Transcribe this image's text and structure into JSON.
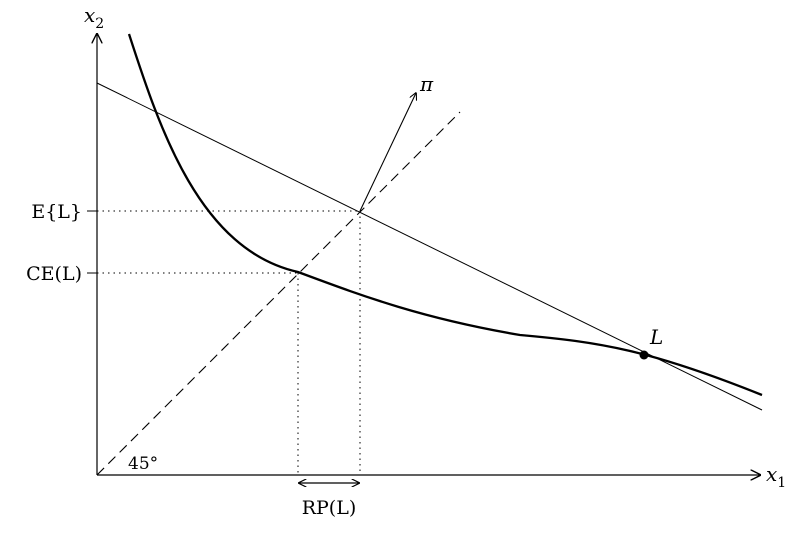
{
  "diagram": {
    "axes": {
      "x_label_var": "x",
      "x_label_sub": "1",
      "y_label_var": "x",
      "y_label_sub": "2"
    },
    "labels": {
      "expected_value": "E{L}",
      "certainty_equivalent": "CE(L)",
      "risk_premium": "RP(L)",
      "lottery_point": "L",
      "price_vector": "π",
      "angle": "45°"
    }
  }
}
